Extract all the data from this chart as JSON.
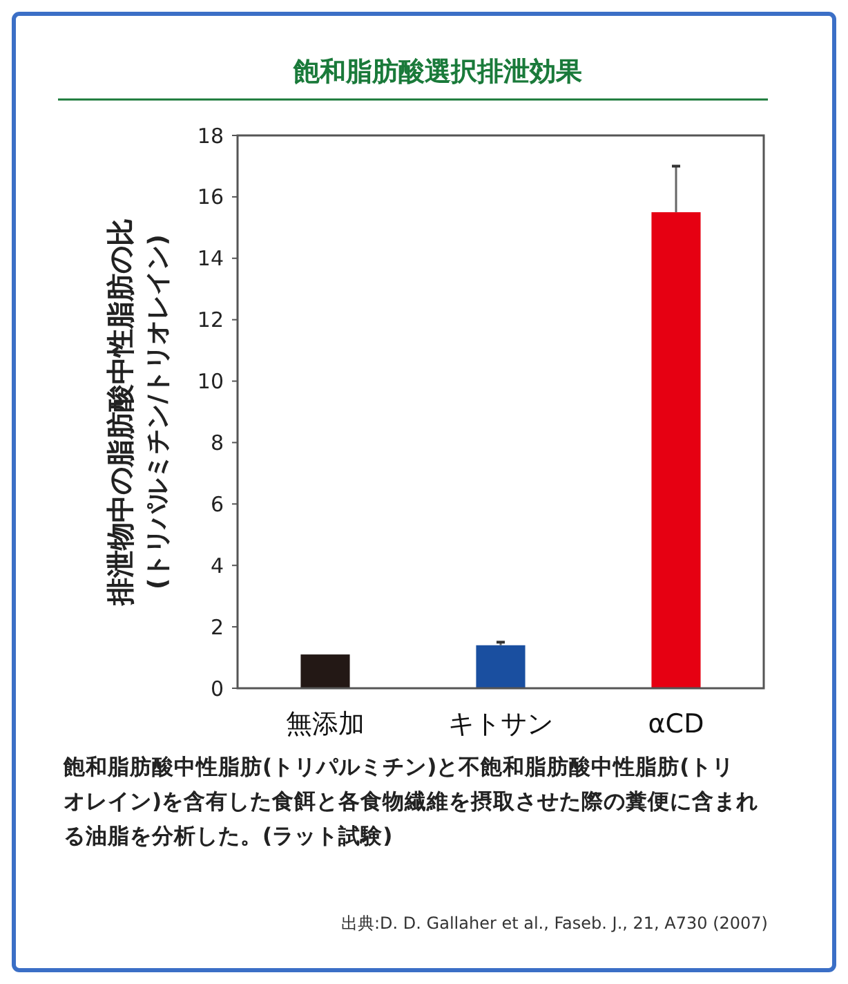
{
  "chart_data": {
    "type": "bar",
    "title": "飽和脂肪酸選択排泄効果",
    "ylabel": "排泄物中の脂肪酸中性脂肪の比\n(トリパルミチン/トリオレイン)",
    "categories": [
      "無添加",
      "キトサン",
      "αCD"
    ],
    "values": [
      1.1,
      1.4,
      15.5
    ],
    "errors": [
      null,
      0.1,
      1.5
    ],
    "colors": [
      "#231815",
      "#1a4fa0",
      "#e60012"
    ],
    "ylim": [
      0,
      18
    ],
    "yticks": [
      0,
      2,
      4,
      6,
      8,
      10,
      12,
      14,
      16,
      18
    ],
    "grid": false,
    "annotations": [
      "飽和脂肪酸中性脂肪(トリパルミチン)と不飽和脂肪酸中性脂肪(トリオレイン)を含有した食餌と各食物繊維を摂取させた際の糞便に含まれる油脂を分析した。(ラット試験)",
      "出典:D. D. Gallaher et al., Faseb. J., 21, A730 (2007)"
    ]
  }
}
